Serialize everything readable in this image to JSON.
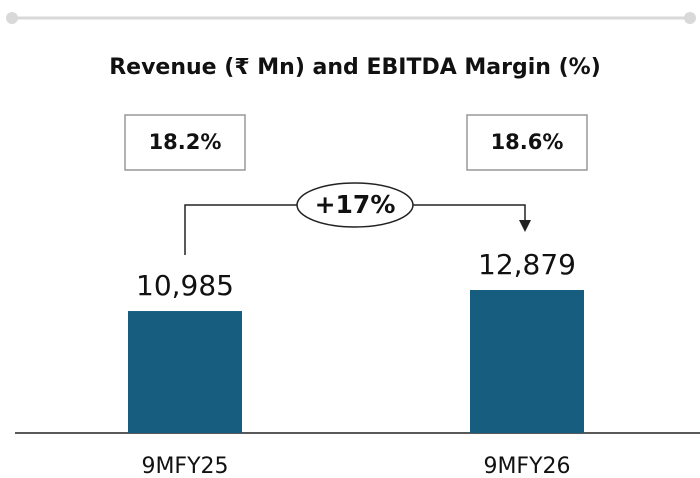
{
  "chart_data": {
    "type": "bar",
    "title": "Revenue (₹ Mn) and EBITDA Margin (%)",
    "categories": [
      "9MFY25",
      "9MFY26"
    ],
    "values": [
      10985,
      12879
    ],
    "value_labels": [
      "10,985",
      "12,879"
    ],
    "color": "#175d80",
    "margin_values": [
      18.2,
      18.6
    ],
    "margin_labels": [
      "18.2%",
      "18.6%"
    ],
    "growth": 17,
    "growth_label": "+17%"
  }
}
